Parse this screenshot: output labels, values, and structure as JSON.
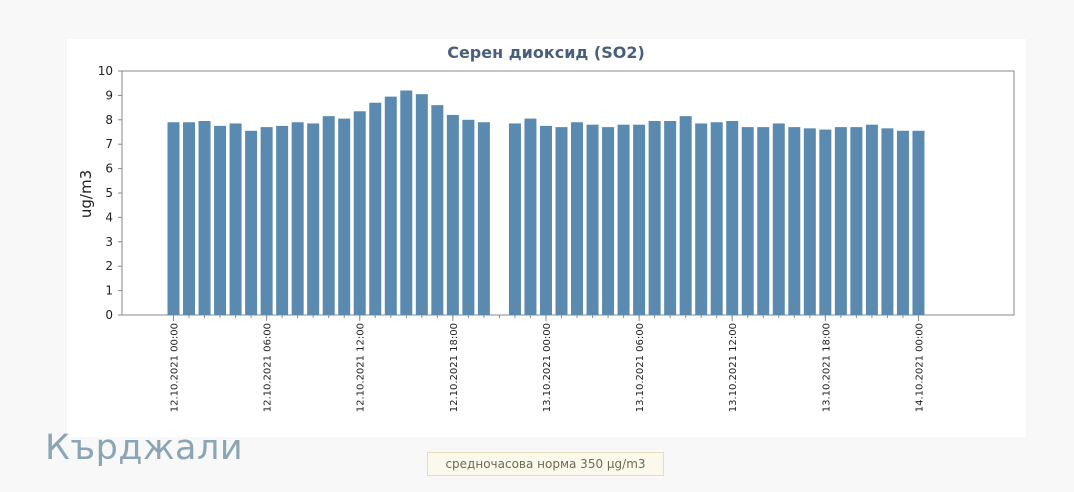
{
  "city": "Кърджали",
  "norm_label": "средночасова норма 350 µg/m3",
  "colors": {
    "bar": "#5b8ab0",
    "title": "#4a5f7e",
    "axis": "#8a8a8a",
    "text": "#222222"
  },
  "chart_data": {
    "type": "bar",
    "title": "Серен диоксид (SO2)",
    "xlabel": "",
    "ylabel": "ug/m3",
    "ylim": [
      0,
      10
    ],
    "yticks": [
      0,
      1,
      2,
      3,
      4,
      5,
      6,
      7,
      8,
      9,
      10
    ],
    "grid": false,
    "x_tick_labels": [
      {
        "hour_index": 0,
        "label": "12.10.2021 00:00"
      },
      {
        "hour_index": 6,
        "label": "12.10.2021 06:00"
      },
      {
        "hour_index": 12,
        "label": "12.10.2021 12:00"
      },
      {
        "hour_index": 18,
        "label": "12.10.2021 18:00"
      },
      {
        "hour_index": 24,
        "label": "13.10.2021 00:00"
      },
      {
        "hour_index": 30,
        "label": "13.10.2021 06:00"
      },
      {
        "hour_index": 36,
        "label": "13.10.2021 12:00"
      },
      {
        "hour_index": 42,
        "label": "13.10.2021 18:00"
      },
      {
        "hour_index": 48,
        "label": "14.10.2021 00:00"
      }
    ],
    "series": [
      {
        "values": [
          7.9,
          7.9,
          7.95,
          7.75,
          7.85,
          7.55,
          7.7,
          7.75,
          7.9,
          7.85,
          8.15,
          8.05,
          8.35,
          8.7,
          8.95,
          9.2,
          9.05,
          8.6,
          8.2,
          8.0,
          7.9,
          null,
          7.85,
          8.05,
          7.75,
          7.7,
          7.9,
          7.8,
          7.7,
          7.8,
          7.8,
          7.95,
          7.95,
          8.15,
          7.85,
          7.9,
          7.95,
          7.7,
          7.7,
          7.85,
          7.7,
          7.65,
          7.6,
          7.7,
          7.7,
          7.8,
          7.65,
          7.55,
          7.55
        ]
      }
    ]
  }
}
